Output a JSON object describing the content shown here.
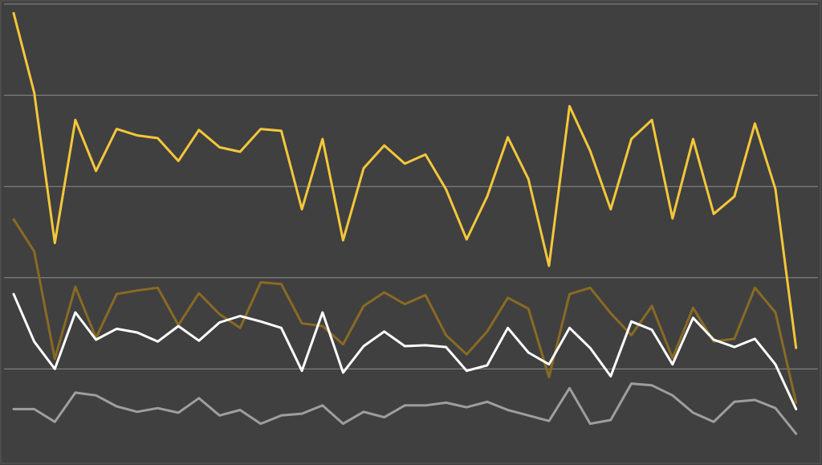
{
  "chart_data": {
    "type": "line",
    "title": "",
    "xlabel": "",
    "ylabel": "",
    "legend": "none",
    "grid": true,
    "ylim": [
      0,
      500
    ],
    "yticks": [
      0,
      100,
      200,
      300,
      400,
      500
    ],
    "x": [
      1,
      2,
      3,
      4,
      5,
      6,
      7,
      8,
      9,
      10,
      11,
      12,
      13,
      14,
      15,
      16,
      17,
      18,
      19,
      20,
      21,
      22,
      23,
      24,
      25,
      26,
      27,
      28,
      29,
      30,
      31,
      32,
      33,
      34,
      35,
      36,
      37,
      38,
      39,
      40
    ],
    "series": [
      {
        "color": "#f5c73a",
        "values": [
          490,
          403,
          238,
          373,
          317,
          363,
          356,
          353,
          328,
          362,
          343,
          338,
          363,
          361,
          275,
          352,
          241,
          320,
          345,
          325,
          335,
          297,
          242,
          289,
          354,
          308,
          213,
          388,
          339,
          275,
          352,
          373,
          265,
          352,
          270,
          289,
          369,
          297,
          123,
          null
        ]
      },
      {
        "color": "#8a6a24",
        "values": [
          264,
          229,
          111,
          190,
          134,
          182,
          186,
          189,
          148,
          183,
          160,
          145,
          195,
          193,
          150,
          147,
          127,
          169,
          184,
          171,
          181,
          137,
          116,
          141,
          178,
          166,
          91,
          182,
          189,
          161,
          137,
          169,
          112,
          167,
          130,
          133,
          189,
          162,
          63,
          null
        ]
      },
      {
        "color": "#ffffff",
        "values": [
          182,
          130,
          100,
          162,
          132,
          144,
          140,
          130,
          147,
          131,
          151,
          158,
          152,
          145,
          98,
          162,
          96,
          125,
          141,
          125,
          126,
          124,
          98,
          104,
          145,
          118,
          105,
          145,
          123,
          92,
          152,
          143,
          105,
          156,
          132,
          124,
          133,
          105,
          56,
          null
        ]
      },
      {
        "color": "#9e9e9e",
        "values": [
          56,
          56,
          42,
          74,
          71,
          59,
          53,
          57,
          52,
          68,
          49,
          55,
          40,
          49,
          51,
          60,
          40,
          53,
          47,
          60,
          60,
          63,
          58,
          64,
          55,
          49,
          43,
          79,
          40,
          44,
          84,
          82,
          71,
          52,
          42,
          64,
          66,
          57,
          29,
          null
        ]
      }
    ]
  }
}
